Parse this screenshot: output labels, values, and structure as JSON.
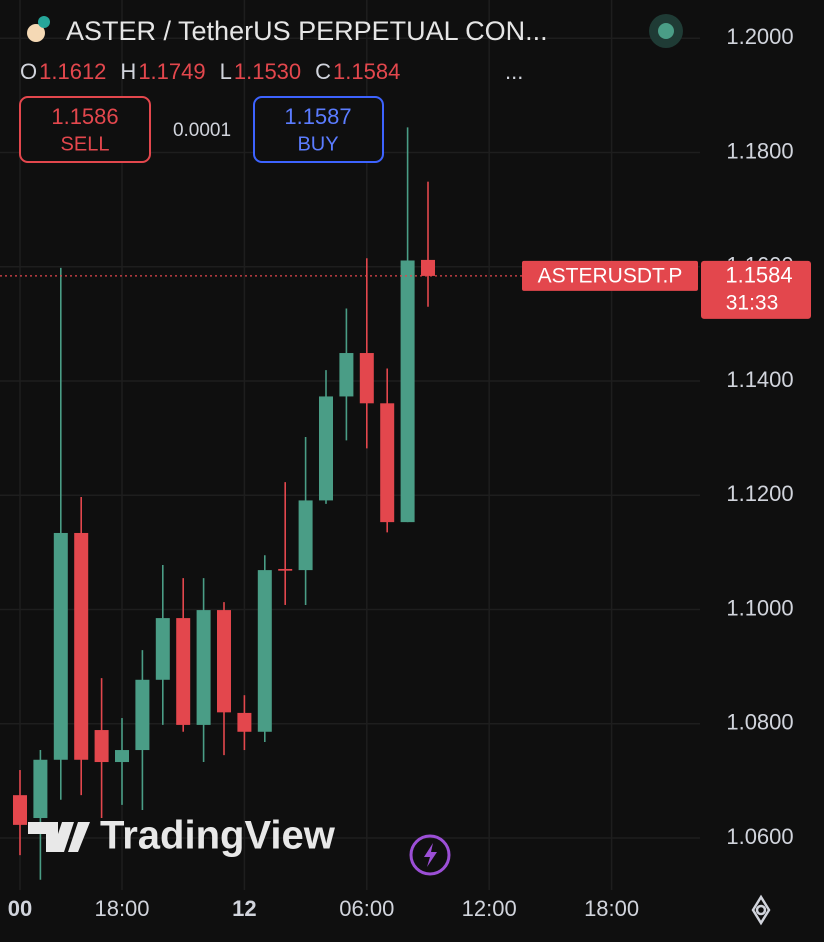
{
  "chart_data": {
    "type": "candlestick",
    "title": "ASTER / TetherUS PERPETUAL CON...",
    "categories": [
      "00",
      null,
      null,
      null,
      null,
      "18:00",
      null,
      null,
      null,
      null,
      null,
      "12",
      null,
      null,
      null,
      null,
      null,
      "06:00",
      null,
      null,
      null,
      null,
      null,
      "12:00",
      null,
      null,
      null,
      null,
      null,
      "18:00"
    ],
    "open": [
      1.0675,
      1.0635,
      1.0737,
      1.1134,
      1.0789,
      1.0733,
      1.0754,
      1.0877,
      1.0985,
      1.0798,
      1.0999,
      1.0819,
      1.0786,
      1.1071,
      1.1069,
      1.1191,
      1.1373,
      1.1449,
      1.1361,
      1.1153,
      1.1612,
      null,
      null,
      null,
      null,
      null,
      null,
      null,
      null,
      null
    ],
    "high": [
      1.0719,
      1.0754,
      1.1598,
      1.1197,
      1.088,
      1.081,
      1.0929,
      1.1078,
      1.1055,
      1.1055,
      1.1013,
      1.085,
      1.1095,
      1.1223,
      1.1302,
      1.1419,
      1.1527,
      1.1615,
      1.1422,
      1.1844,
      1.1749,
      null,
      null,
      null,
      null,
      null,
      null,
      null,
      null,
      null
    ],
    "low": [
      1.057,
      1.0527,
      1.0667,
      1.0675,
      1.0635,
      1.0658,
      1.0649,
      1.0798,
      1.0786,
      1.0733,
      1.0745,
      1.0754,
      1.0768,
      1.1008,
      1.1008,
      1.1185,
      1.1296,
      1.1282,
      1.1135,
      1.1153,
      1.153,
      null,
      null,
      null,
      null,
      null,
      null,
      null,
      null,
      null
    ],
    "close": [
      1.0623,
      1.0737,
      1.1134,
      1.0737,
      1.0733,
      1.0754,
      1.0877,
      1.0985,
      1.0798,
      1.0999,
      1.082,
      1.0786,
      1.1069,
      1.1068,
      1.1191,
      1.1373,
      1.1449,
      1.1361,
      1.1153,
      1.1611,
      1.1584,
      null,
      null,
      null,
      null,
      null,
      null,
      null,
      null,
      null
    ],
    "up_color": "#4a9d86",
    "down_color": "#e3474d",
    "ylim": [
      1.0509,
      1.2067
    ],
    "yticks": [
      {
        "value": 1.06,
        "label": "1.0600"
      },
      {
        "value": 1.08,
        "label": "1.0800"
      },
      {
        "value": 1.1,
        "label": "1.1000"
      },
      {
        "value": 1.12,
        "label": "1.1200"
      },
      {
        "value": 1.14,
        "label": "1.1400"
      },
      {
        "value": 1.16,
        "label": "1.1600"
      },
      {
        "value": 1.18,
        "label": "1.1800"
      },
      {
        "value": 1.2,
        "label": "1.2000"
      }
    ],
    "grid": true,
    "last_price": 1.1584,
    "symbol_label": "ASTERUSDT.P",
    "countdown": "31:33"
  },
  "header": {
    "ohlc": [
      {
        "key": "O",
        "value": "1.1612"
      },
      {
        "key": "H",
        "value": "1.1749"
      },
      {
        "key": "L",
        "value": "1.1530"
      },
      {
        "key": "C",
        "value": "1.1584"
      }
    ],
    "more": "..."
  },
  "trade": {
    "sell_price": "1.1586",
    "sell": "SELL",
    "spread": "0.0001",
    "buy_price": "1.1587",
    "buy": "BUY"
  },
  "watermark": "TradingView"
}
